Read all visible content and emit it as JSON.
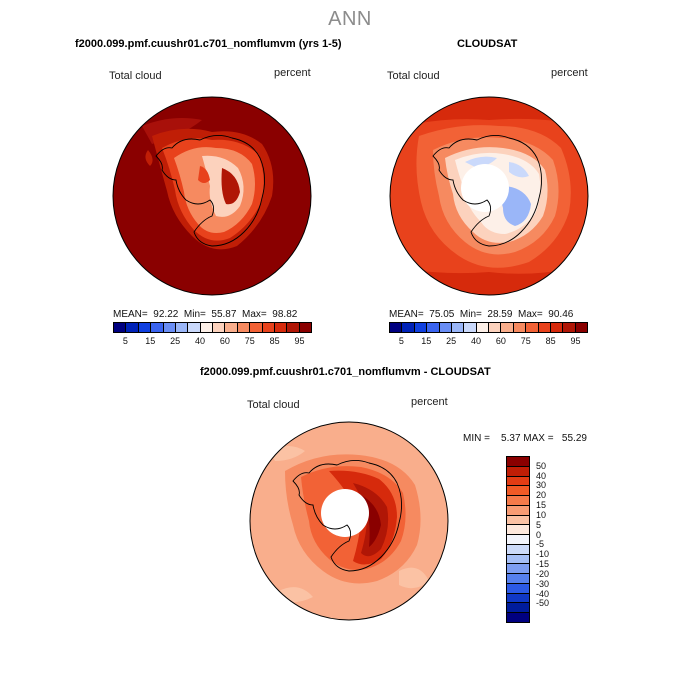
{
  "page": {
    "title": "ANN"
  },
  "panels": {
    "top_left": {
      "title": "f2000.099.pmf.cuushr01.c701_nomflumvm (yrs 1-5)",
      "variable": "Total cloud",
      "units": "percent",
      "mean_label": "MEAN=",
      "mean": "92.22",
      "min_label": "Min=",
      "min": "55.87",
      "max_label": "Max=",
      "max": "98.82"
    },
    "top_right": {
      "title": "CLOUDSAT",
      "variable": "Total cloud",
      "units": "percent",
      "mean_label": "MEAN=",
      "mean": "75.05",
      "min_label": "Min=",
      "min": "28.59",
      "max_label": "Max=",
      "max": "90.46"
    },
    "bottom": {
      "title": "f2000.099.pmf.cuushr01.c701_nomflumvm - CLOUDSAT",
      "variable": "Total cloud",
      "units": "percent",
      "minmax_text": "MIN =    5.37 MAX =   55.29"
    }
  },
  "colorbar_abs": {
    "colors": [
      "#000080",
      "#0022b8",
      "#1040e0",
      "#3a64f0",
      "#6a8ef5",
      "#9ab6f8",
      "#cad9fb",
      "#fdf0e8",
      "#fcd2bd",
      "#f9ae8c",
      "#f68a60",
      "#f26236",
      "#e8421c",
      "#d62a0c",
      "#b01606",
      "#8a0000"
    ],
    "tick_labels": [
      "5",
      "15",
      "25",
      "40",
      "60",
      "75",
      "85",
      "95"
    ]
  },
  "colorbar_diff": {
    "colors": [
      "#8a0000",
      "#c01e06",
      "#e23c14",
      "#f05a26",
      "#f57a4a",
      "#f89c74",
      "#fbc2a4",
      "#fde8dc",
      "#f2f4fb",
      "#ccdaf9",
      "#a6bff6",
      "#7e9ef2",
      "#5680ee",
      "#2c5ae6",
      "#1038c6",
      "#001c9c",
      "#000080"
    ],
    "tick_labels": [
      "50",
      "40",
      "30",
      "20",
      "15",
      "10",
      "5",
      "0",
      "-5",
      "-10",
      "-15",
      "-20",
      "-30",
      "-40",
      "-50"
    ]
  },
  "chart_data": [
    {
      "type": "polar-map",
      "title": "f2000.099.pmf.cuushr01.c701_nomflumvm (yrs 1-5)",
      "variable": "Total cloud",
      "units": "percent",
      "season": "ANN",
      "mean": 92.22,
      "min": 55.87,
      "max": 98.82,
      "contour_levels": [
        5,
        10,
        15,
        20,
        25,
        30,
        40,
        50,
        60,
        65,
        70,
        75,
        80,
        85,
        90,
        95
      ]
    },
    {
      "type": "polar-map",
      "title": "CLOUDSAT",
      "variable": "Total cloud",
      "units": "percent",
      "season": "ANN",
      "mean": 75.05,
      "min": 28.59,
      "max": 90.46,
      "contour_levels": [
        5,
        10,
        15,
        20,
        25,
        30,
        40,
        50,
        60,
        65,
        70,
        75,
        80,
        85,
        90,
        95
      ]
    },
    {
      "type": "polar-map",
      "title": "f2000.099.pmf.cuushr01.c701_nomflumvm - CLOUDSAT",
      "variable": "Total cloud",
      "units": "percent",
      "season": "ANN",
      "min": 5.37,
      "max": 55.29,
      "contour_levels": [
        -50,
        -40,
        -30,
        -20,
        -15,
        -10,
        -5,
        0,
        5,
        10,
        15,
        20,
        30,
        40,
        50
      ]
    }
  ]
}
